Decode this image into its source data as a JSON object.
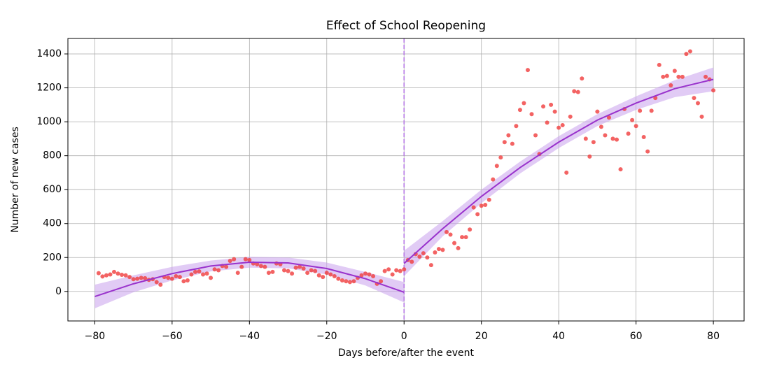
{
  "chart_data": {
    "type": "scatter",
    "title": "Effect of School Reopening",
    "x_label": "Days before/after the event",
    "y_label": "Number of new cases",
    "xlim": [
      -86.95,
      87.95
    ],
    "ylim": [
      -174,
      1491
    ],
    "xticks": [
      {
        "value": -80,
        "label": "−80"
      },
      {
        "value": -60,
        "label": "−60"
      },
      {
        "value": -40,
        "label": "−40"
      },
      {
        "value": -20,
        "label": "−20"
      },
      0,
      20,
      40,
      60,
      80
    ],
    "yticks": [
      0,
      200,
      400,
      600,
      800,
      1000,
      1200,
      1400
    ],
    "grid": true,
    "points": {
      "color": "#f03c3c",
      "x": [
        -79,
        -78,
        -77,
        -76,
        -75,
        -74,
        -73,
        -72,
        -71,
        -70,
        -69,
        -68,
        -67,
        -66,
        -65,
        -64,
        -63,
        -62,
        -61,
        -60,
        -59,
        -58,
        -57,
        -56,
        -55,
        -54,
        -53,
        -52,
        -51,
        -50,
        -49,
        -48,
        -47,
        -46,
        -45,
        -44,
        -43,
        -42,
        -41,
        -40,
        -39,
        -38,
        -37,
        -36,
        -35,
        -34,
        -33,
        -32,
        -31,
        -30,
        -29,
        -28,
        -27,
        -26,
        -25,
        -24,
        -23,
        -22,
        -21,
        -20,
        -19,
        -18,
        -17,
        -16,
        -15,
        -14,
        -13,
        -12,
        -11,
        -10,
        -9,
        -8,
        -7,
        -6,
        -5,
        -4,
        -3,
        -2,
        -1,
        0,
        1,
        2,
        3,
        4,
        5,
        6,
        7,
        8,
        9,
        10,
        11,
        12,
        13,
        14,
        15,
        16,
        17,
        18,
        19,
        20,
        21,
        22,
        23,
        24,
        25,
        26,
        27,
        28,
        29,
        30,
        31,
        32,
        33,
        34,
        35,
        36,
        37,
        38,
        39,
        40,
        41,
        42,
        43,
        44,
        45,
        46,
        47,
        48,
        49,
        50,
        51,
        52,
        53,
        54,
        55,
        56,
        57,
        58,
        59,
        60,
        61,
        62,
        63,
        64,
        65,
        66,
        67,
        68,
        69,
        70,
        71,
        72,
        73,
        74,
        75,
        76,
        77,
        78,
        79,
        80
      ],
      "y": [
        108,
        88,
        95,
        100,
        115,
        105,
        98,
        95,
        85,
        72,
        75,
        80,
        78,
        68,
        72,
        55,
        40,
        85,
        80,
        75,
        90,
        85,
        60,
        65,
        100,
        115,
        118,
        100,
        105,
        80,
        130,
        125,
        150,
        145,
        180,
        190,
        110,
        145,
        190,
        185,
        165,
        160,
        150,
        145,
        110,
        115,
        165,
        160,
        125,
        120,
        105,
        140,
        145,
        135,
        110,
        125,
        120,
        95,
        85,
        110,
        100,
        90,
        75,
        65,
        60,
        55,
        60,
        80,
        95,
        105,
        100,
        90,
        45,
        60,
        120,
        130,
        100,
        125,
        120,
        130,
        185,
        175,
        220,
        205,
        225,
        200,
        155,
        230,
        250,
        245,
        350,
        335,
        285,
        255,
        320,
        320,
        365,
        495,
        455,
        505,
        510,
        540,
        660,
        740,
        790,
        880,
        920,
        870,
        975,
        1070,
        1110,
        1305,
        1045,
        920,
        810,
        1090,
        995,
        1100,
        1060,
        965,
        980,
        700,
        1030,
        1180,
        1175,
        1255,
        900,
        795,
        880,
        1060,
        970,
        920,
        1025,
        900,
        895,
        720,
        1075,
        930,
        1010,
        975,
        1065,
        910,
        825,
        1065,
        1140,
        1335,
        1265,
        1270,
        1215,
        1300,
        1265,
        1265,
        1400,
        1415,
        1140,
        1110,
        1030,
        1265,
        1250,
        1185
      ]
    },
    "fits": [
      {
        "color": "#9932cc",
        "band_color": "#c9a0ec",
        "x": [
          -80,
          -70,
          -60,
          -50,
          -40,
          -30,
          -20,
          -10,
          0
        ],
        "y": [
          -30,
          45,
          105,
          150,
          172,
          168,
          135,
          75,
          -5
        ],
        "lower": [
          -100,
          -5,
          65,
          118,
          140,
          136,
          100,
          35,
          -65
        ],
        "upper": [
          40,
          95,
          145,
          182,
          204,
          200,
          170,
          115,
          55
        ]
      },
      {
        "color": "#9932cc",
        "band_color": "#c9a0ec",
        "x": [
          0,
          10,
          20,
          30,
          40,
          50,
          60,
          70,
          80
        ],
        "y": [
          165,
          370,
          560,
          730,
          880,
          1010,
          1110,
          1195,
          1250
        ],
        "lower": [
          90,
          325,
          520,
          695,
          845,
          975,
          1070,
          1145,
          1180
        ],
        "upper": [
          240,
          415,
          600,
          765,
          915,
          1045,
          1150,
          1245,
          1320
        ]
      }
    ],
    "event_line": {
      "x": 0,
      "color": "#b77ae6",
      "style": "dashed"
    }
  }
}
